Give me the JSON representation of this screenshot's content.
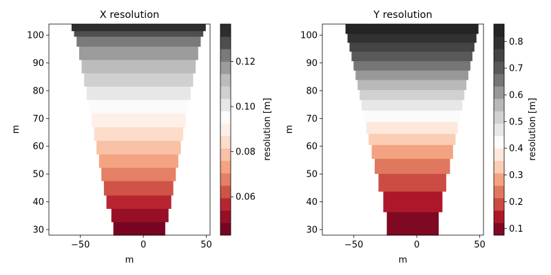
{
  "chart_data": [
    {
      "type": "heatmap",
      "title": "X resolution",
      "xlabel": "m",
      "ylabel": "m",
      "xlim": [
        -75,
        53
      ],
      "ylim": [
        28,
        104
      ],
      "xticks": [
        -50,
        0,
        50
      ],
      "yticks": [
        30,
        40,
        50,
        60,
        70,
        80,
        90,
        100
      ],
      "xtick_labels": [
        "−50",
        "0",
        "50"
      ],
      "ytick_labels": [
        "30",
        "40",
        "50",
        "60",
        "70",
        "80",
        "90",
        "100"
      ],
      "colormap": "RdGy",
      "colorbar": {
        "label": "resolution [m]",
        "range": [
          0.043,
          0.1366
        ],
        "ticks": [
          0.06,
          0.08,
          0.1,
          0.12
        ],
        "tick_labels": [
          "0.06",
          "0.08",
          "0.10",
          "0.12"
        ]
      },
      "bands": [
        {
          "y_bottom": 28.0,
          "y_top": 32.8,
          "x_left": -23.8,
          "x_right": 17.4,
          "value": 0.045
        },
        {
          "y_bottom": 32.8,
          "y_top": 37.6,
          "x_left": -25.4,
          "x_right": 20.0,
          "value": 0.049
        },
        {
          "y_bottom": 37.6,
          "y_top": 42.4,
          "x_left": -29.3,
          "x_right": 22.2,
          "value": 0.054
        },
        {
          "y_bottom": 42.4,
          "y_top": 47.6,
          "x_left": -31.3,
          "x_right": 23.8,
          "value": 0.06
        },
        {
          "y_bottom": 47.6,
          "y_top": 52.4,
          "x_left": -33.3,
          "x_right": 25.8,
          "value": 0.066
        },
        {
          "y_bottom": 52.4,
          "y_top": 57.2,
          "x_left": -35.2,
          "x_right": 27.8,
          "value": 0.071
        },
        {
          "y_bottom": 57.2,
          "y_top": 62.1,
          "x_left": -37.2,
          "x_right": 29.8,
          "value": 0.076
        },
        {
          "y_bottom": 62.1,
          "y_top": 67.0,
          "x_left": -39.1,
          "x_right": 31.7,
          "value": 0.081
        },
        {
          "y_bottom": 67.0,
          "y_top": 71.9,
          "x_left": -41.1,
          "x_right": 33.7,
          "value": 0.086
        },
        {
          "y_bottom": 71.9,
          "y_top": 76.8,
          "x_left": -43.1,
          "x_right": 35.7,
          "value": 0.091
        },
        {
          "y_bottom": 76.8,
          "y_top": 81.6,
          "x_left": -45.0,
          "x_right": 37.6,
          "value": 0.097
        },
        {
          "y_bottom": 81.6,
          "y_top": 86.4,
          "x_left": -47.0,
          "x_right": 39.6,
          "value": 0.103
        },
        {
          "y_bottom": 86.4,
          "y_top": 91.2,
          "x_left": -49.0,
          "x_right": 41.6,
          "value": 0.108
        },
        {
          "y_bottom": 91.2,
          "y_top": 96.0,
          "x_left": -51.0,
          "x_right": 43.6,
          "value": 0.114
        },
        {
          "y_bottom": 96.0,
          "y_top": 99.6,
          "x_left": -53.0,
          "x_right": 45.6,
          "value": 0.12
        },
        {
          "y_bottom": 99.6,
          "y_top": 101.6,
          "x_left": -55.0,
          "x_right": 47.6,
          "value": 0.127
        },
        {
          "y_bottom": 101.6,
          "y_top": 104.0,
          "x_left": -57.0,
          "x_right": 49.6,
          "value": 0.133
        }
      ]
    },
    {
      "type": "heatmap",
      "title": "Y resolution",
      "xlabel": "m",
      "ylabel": "m",
      "xlim": [
        -75,
        53
      ],
      "ylim": [
        28,
        104
      ],
      "xticks": [
        -50,
        0,
        50
      ],
      "yticks": [
        30,
        40,
        50,
        60,
        70,
        80,
        90,
        100
      ],
      "xtick_labels": [
        "−50",
        "0",
        "50"
      ],
      "ytick_labels": [
        "30",
        "40",
        "50",
        "60",
        "70",
        "80",
        "90",
        "100"
      ],
      "colormap": "RdGy",
      "colorbar": {
        "label": "resolution [m]",
        "range": [
          0.075,
          0.865
        ],
        "ticks": [
          0.1,
          0.2,
          0.3,
          0.4,
          0.5,
          0.6,
          0.7,
          0.8
        ],
        "tick_labels": [
          "0.1",
          "0.2",
          "0.3",
          "0.4",
          "0.5",
          "0.6",
          "0.7",
          "0.8"
        ]
      },
      "bands": [
        {
          "y_bottom": 28.0,
          "y_top": 36.4,
          "x_left": -23.8,
          "x_right": 17.4,
          "value": 0.1
        },
        {
          "y_bottom": 36.4,
          "y_top": 43.8,
          "x_left": -26.6,
          "x_right": 20.4,
          "value": 0.15
        },
        {
          "y_bottom": 43.8,
          "y_top": 50.2,
          "x_left": -30.4,
          "x_right": 23.4,
          "value": 0.21
        },
        {
          "y_bottom": 50.2,
          "y_top": 55.6,
          "x_left": -33.4,
          "x_right": 26.4,
          "value": 0.26
        },
        {
          "y_bottom": 55.6,
          "y_top": 60.6,
          "x_left": -35.8,
          "x_right": 28.8,
          "value": 0.31
        },
        {
          "y_bottom": 60.6,
          "y_top": 64.6,
          "x_left": -38.2,
          "x_right": 30.8,
          "value": 0.37
        },
        {
          "y_bottom": 64.6,
          "y_top": 69.0,
          "x_left": -40.0,
          "x_right": 32.6,
          "value": 0.42
        },
        {
          "y_bottom": 69.0,
          "y_top": 73.0,
          "x_left": -42.0,
          "x_right": 34.4,
          "value": 0.48
        },
        {
          "y_bottom": 73.0,
          "y_top": 76.8,
          "x_left": -43.8,
          "x_right": 36.2,
          "value": 0.53
        },
        {
          "y_bottom": 76.8,
          "y_top": 80.4,
          "x_left": -45.4,
          "x_right": 37.8,
          "value": 0.58
        },
        {
          "y_bottom": 80.4,
          "y_top": 84.0,
          "x_left": -47.0,
          "x_right": 39.4,
          "value": 0.63
        },
        {
          "y_bottom": 84.0,
          "y_top": 87.4,
          "x_left": -48.6,
          "x_right": 41.0,
          "value": 0.68
        },
        {
          "y_bottom": 87.4,
          "y_top": 90.8,
          "x_left": -50.2,
          "x_right": 42.6,
          "value": 0.73
        },
        {
          "y_bottom": 90.8,
          "y_top": 94.2,
          "x_left": -51.8,
          "x_right": 44.2,
          "value": 0.77
        },
        {
          "y_bottom": 94.2,
          "y_top": 97.4,
          "x_left": -53.4,
          "x_right": 45.8,
          "value": 0.8
        },
        {
          "y_bottom": 97.4,
          "y_top": 100.6,
          "x_left": -55.0,
          "x_right": 47.4,
          "value": 0.83
        },
        {
          "y_bottom": 100.6,
          "y_top": 104.0,
          "x_left": -56.6,
          "x_right": 49.0,
          "value": 0.85
        }
      ]
    }
  ]
}
